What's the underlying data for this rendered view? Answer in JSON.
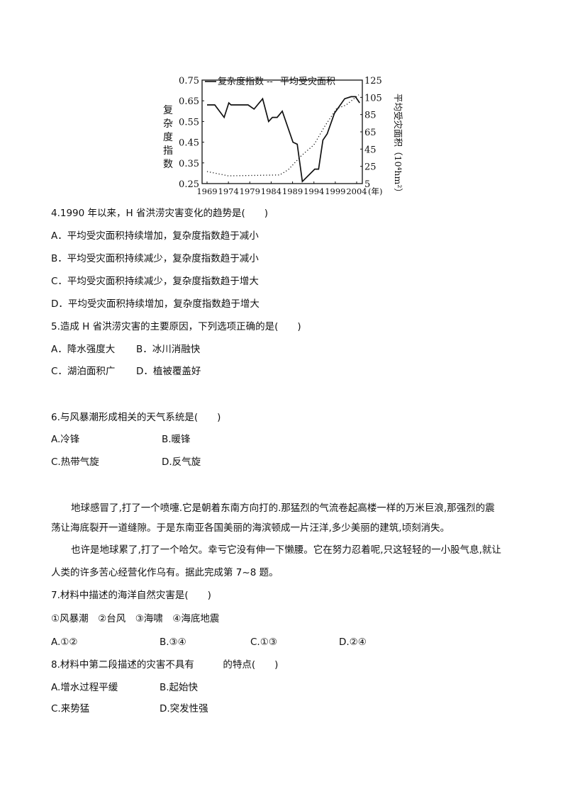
{
  "chart_data": {
    "type": "line",
    "legend": [
      "复杂度指数",
      "平均受灾面积"
    ],
    "legend_placement": "top",
    "ylabel": "复杂度指数",
    "y2label": "平均受灾面积（10⁴hm²）",
    "x_unit": "(年)",
    "xticks": [
      "1969",
      "1974",
      "1979",
      "1984",
      "1989",
      "1994",
      "1999",
      "2004"
    ],
    "yticks": [
      "0.75",
      "0.65",
      "0.55",
      "0.45",
      "0.35",
      "0.25"
    ],
    "y2ticks": [
      "125",
      "105",
      "85",
      "65",
      "45",
      "25",
      "5"
    ],
    "xlim": [
      1969,
      2004
    ],
    "ylim": [
      0.25,
      0.75
    ],
    "y2lim": [
      5,
      125
    ],
    "grid": false,
    "series": [
      {
        "name": "复杂度指数",
        "axis": "left",
        "style": "solid",
        "x": [
          1969,
          1970.8,
          1973,
          1974.1,
          1974.6,
          1978.6,
          1980,
          1982,
          1983.4,
          1984.3,
          1985.4,
          1986.6,
          1989.1,
          1990.1,
          1991.3,
          1994.2,
          1995.1,
          1996.1,
          1997.1,
          1998.8,
          2001.2,
          2002.7,
          2003.7,
          2004.7
        ],
        "y": [
          0.63,
          0.63,
          0.57,
          0.64,
          0.63,
          0.63,
          0.61,
          0.66,
          0.55,
          0.57,
          0.57,
          0.6,
          0.45,
          0.44,
          0.26,
          0.32,
          0.32,
          0.46,
          0.49,
          0.59,
          0.66,
          0.67,
          0.67,
          0.64
        ]
      },
      {
        "name": "平均受灾面积",
        "axis": "right",
        "style": "dotted",
        "x": [
          1969,
          1974,
          1986,
          1988,
          1991,
          1994,
          1996.6,
          1999.3,
          2001.5,
          2004.5
        ],
        "y": [
          19,
          14,
          15,
          21,
          37,
          50,
          72,
          92,
          96,
          108
        ]
      }
    ]
  },
  "questions": {
    "q4": {
      "stem": "4.1990 年以来，H 省洪涝灾害变化的趋势是(　　)",
      "options": [
        "A．平均受灾面积持续增加，复杂度指数趋于减小",
        "B．平均受灾面积持续减少，复杂度指数趋于减小",
        "C．平均受灾面积持续减少，复杂度指数趋于增大",
        "D．平均受灾面积持续增加，复杂度指数趋于增大"
      ]
    },
    "q5": {
      "stem": "5.造成 H 省洪涝灾害的主要原因，下列选项正确的是(　　)",
      "options": [
        "A．降水强度大",
        "B．冰川消融快",
        "C．湖泊面积广",
        "D．植被覆盖好"
      ]
    },
    "q6": {
      "stem": "6.与风暴潮形成相关的天气系统是(　　)",
      "options": [
        "A.冷锋",
        "B.暖锋",
        "C.热带气旋",
        "D.反气旋"
      ]
    },
    "passage": [
      "地球感冒了,打了一个喷嚏.它是朝着东南方向打的.那猛烈的气流卷起高楼一样的万米巨浪,那强烈的震",
      "荡让海底裂开一道缝隙。于是东南亚各国美丽的海滨顿成一片汪洋,多少美丽的建筑,顷刻消失。",
      "也许是地球累了,打了一个哈欠。幸亏它没有伸一下懒腰。它在努力忍着呢,只这轻轻的一小股气息,就让",
      "人类的许多苦心经营化作乌有。据此完成第 7~8 题。"
    ],
    "q7": {
      "stem": "7.材料中描述的海洋自然灾害是(　　)",
      "items": "①风暴潮　②台风　③海啸　④海底地震",
      "options": [
        "A.①②",
        "B.③④",
        "C.①③",
        "D.②④"
      ]
    },
    "q8": {
      "stem": "8.材料中第二段描述的灾害不具有　　　的特点(　　)",
      "options": [
        "A.增水过程平缓",
        "B.起始快",
        "C.来势猛",
        "D.突发性强"
      ]
    }
  }
}
